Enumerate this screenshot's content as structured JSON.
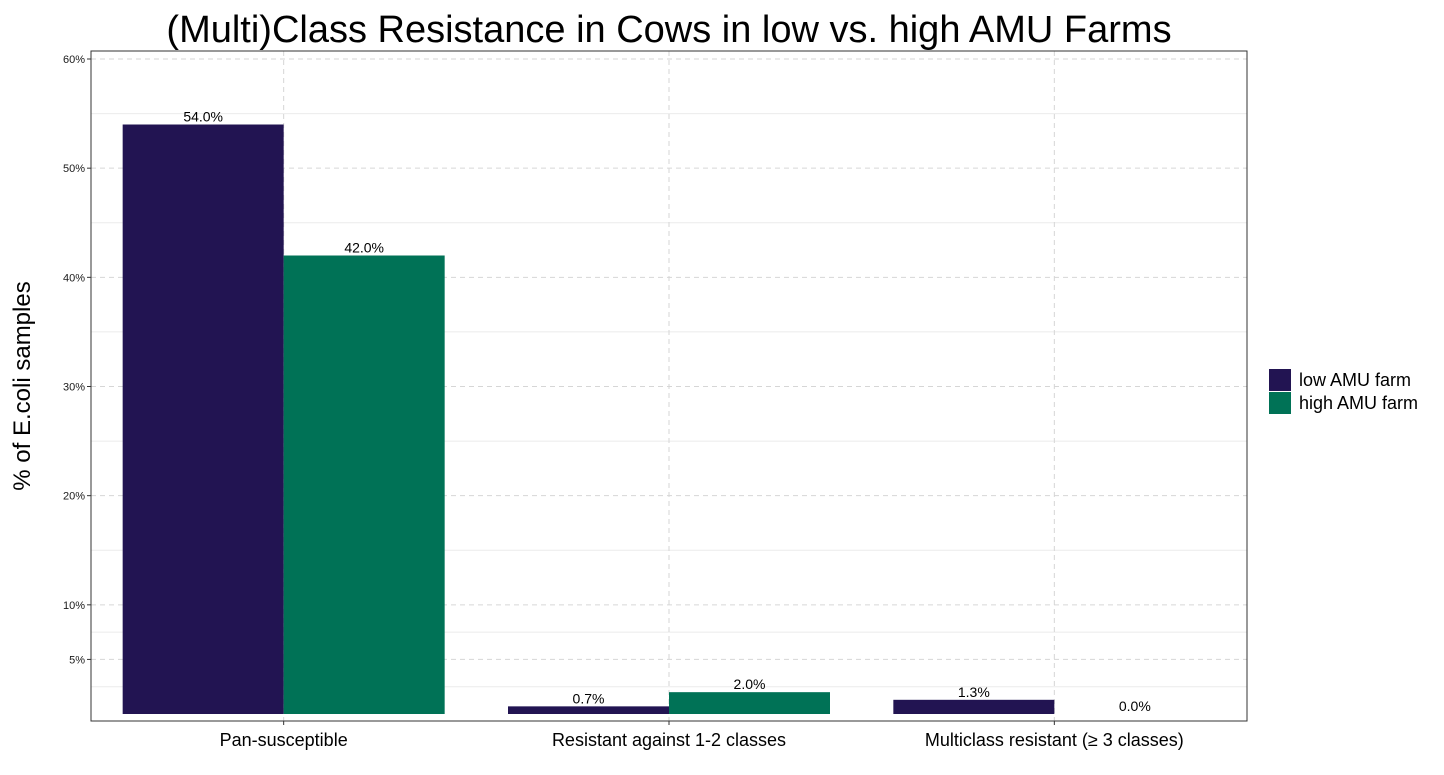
{
  "chart_data": {
    "type": "bar",
    "title": "(Multi)Class Resistance in Cows in low vs. high AMU Farms",
    "xlabel": "",
    "ylabel": "% of E.coli samples",
    "categories": [
      "Pan-susceptible",
      "Resistant against 1-2 classes",
      "Multiclass resistant (≥ 3 classes)"
    ],
    "series": [
      {
        "name": "low AMU farm",
        "color": "#221452",
        "values": [
          54.0,
          0.7,
          1.3
        ],
        "labels": [
          "54.0%",
          "0.7%",
          "1.3%"
        ]
      },
      {
        "name": "high AMU farm",
        "color": "#007256",
        "values": [
          42.0,
          2.0,
          0.0
        ],
        "labels": [
          "42.0%",
          "2.0%",
          "0.0%"
        ]
      }
    ],
    "ylim": [
      0,
      60
    ],
    "yticks": [
      5,
      10,
      20,
      30,
      40,
      50,
      60
    ],
    "ytick_labels": [
      "5%",
      "10%",
      "20%",
      "30%",
      "40%",
      "50%",
      "60%"
    ],
    "y_minor_gridlines": [
      2.5,
      7.5,
      15,
      25,
      35,
      45,
      55
    ],
    "grid": true,
    "legend_position": "right"
  }
}
